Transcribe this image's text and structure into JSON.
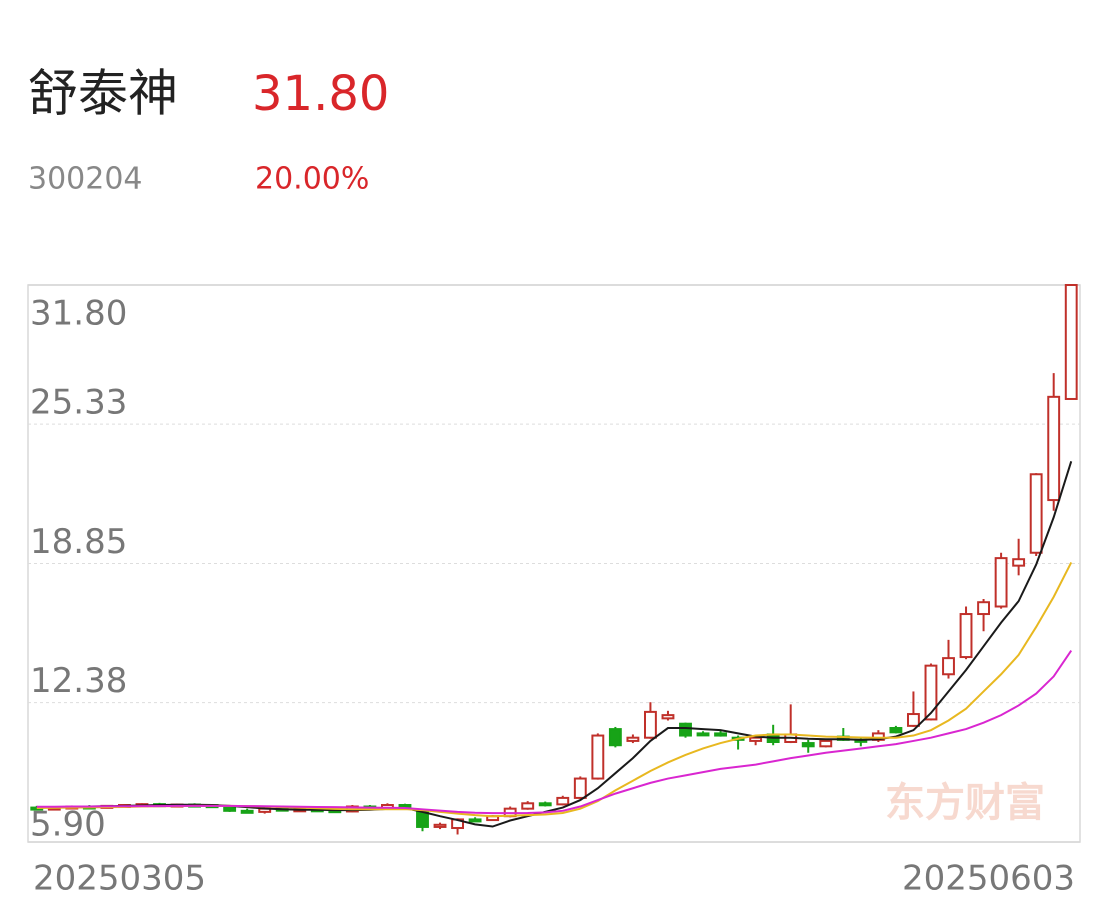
{
  "header": {
    "name": "舒泰神",
    "price": "31.80",
    "code": "300204",
    "change": "20.00%"
  },
  "chart_data": {
    "type": "candlestick",
    "watermark": "东方财富",
    "categories": [
      "20250305",
      null,
      null,
      null,
      null,
      null,
      null,
      null,
      null,
      null,
      null,
      null,
      null,
      null,
      null,
      null,
      null,
      null,
      null,
      null,
      null,
      null,
      null,
      null,
      null,
      null,
      null,
      null,
      null,
      null,
      null,
      null,
      null,
      null,
      null,
      null,
      null,
      null,
      null,
      null,
      null,
      null,
      null,
      null,
      null,
      null,
      null,
      null,
      null,
      null,
      null,
      null,
      null,
      null,
      null,
      null,
      null,
      null,
      null,
      "20250603"
    ],
    "open": [
      7.5,
      7.45,
      7.5,
      7.55,
      7.52,
      7.58,
      7.62,
      7.66,
      7.6,
      7.64,
      7.62,
      7.52,
      7.35,
      7.3,
      7.45,
      7.4,
      7.42,
      7.38,
      7.32,
      7.55,
      7.45,
      7.62,
      7.35,
      6.6,
      6.55,
      6.95,
      6.92,
      7.1,
      7.45,
      7.7,
      7.65,
      7.95,
      8.85,
      11.15,
      10.6,
      10.75,
      11.65,
      11.4,
      10.95,
      10.95,
      10.75,
      10.6,
      10.9,
      10.55,
      10.5,
      10.35,
      10.8,
      10.65,
      10.65,
      11.2,
      11.3,
      11.6,
      13.7,
      14.5,
      16.5,
      16.85,
      18.75,
      19.35,
      21.8,
      26.5
    ],
    "high": [
      7.58,
      7.55,
      7.6,
      7.62,
      7.6,
      7.66,
      7.7,
      7.72,
      7.68,
      7.7,
      7.66,
      7.58,
      7.45,
      7.48,
      7.52,
      7.5,
      7.5,
      7.5,
      7.62,
      7.62,
      7.7,
      7.68,
      7.4,
      6.8,
      7.0,
      7.05,
      7.15,
      7.55,
      7.8,
      7.78,
      8.05,
      8.95,
      10.95,
      11.25,
      10.9,
      12.4,
      12.0,
      11.45,
      11.05,
      11.1,
      10.85,
      10.85,
      11.35,
      12.3,
      10.65,
      10.7,
      11.2,
      10.75,
      11.1,
      11.3,
      12.9,
      14.2,
      15.3,
      16.85,
      17.2,
      19.35,
      20.0,
      23.05,
      27.7,
      31.8
    ],
    "low": [
      7.42,
      7.4,
      7.45,
      7.48,
      7.46,
      7.52,
      7.55,
      7.58,
      7.54,
      7.56,
      7.5,
      7.3,
      7.25,
      7.22,
      7.38,
      7.35,
      7.36,
      7.3,
      7.28,
      7.4,
      7.4,
      7.5,
      6.4,
      6.5,
      6.25,
      6.85,
      6.88,
      7.05,
      7.4,
      7.55,
      7.6,
      7.9,
      8.8,
      10.3,
      10.5,
      10.7,
      11.55,
      10.75,
      10.85,
      10.8,
      10.2,
      10.4,
      10.4,
      10.5,
      10.05,
      10.3,
      10.6,
      10.35,
      10.55,
      10.95,
      11.25,
      11.55,
      13.5,
      14.4,
      15.7,
      16.75,
      18.3,
      19.2,
      21.3,
      26.5
    ],
    "close": [
      7.45,
      7.5,
      7.55,
      7.52,
      7.58,
      7.62,
      7.66,
      7.6,
      7.64,
      7.62,
      7.52,
      7.35,
      7.3,
      7.45,
      7.4,
      7.42,
      7.38,
      7.32,
      7.55,
      7.45,
      7.62,
      7.55,
      6.6,
      6.7,
      6.95,
      6.92,
      7.1,
      7.45,
      7.7,
      7.65,
      7.95,
      8.85,
      10.85,
      10.4,
      10.75,
      11.95,
      11.8,
      10.85,
      10.9,
      10.85,
      10.65,
      10.75,
      10.55,
      10.9,
      10.35,
      10.6,
      10.65,
      10.6,
      10.95,
      11.0,
      11.85,
      14.1,
      14.45,
      16.5,
      17.05,
      19.1,
      19.05,
      23.0,
      26.6,
      31.8
    ],
    "up_color": "#c0302a",
    "down_color": "#17a317",
    "lines": [
      {
        "color": "#1a1a1a",
        "values": [
          7.52,
          7.52,
          7.53,
          7.55,
          7.56,
          7.58,
          7.6,
          7.62,
          7.63,
          7.63,
          7.62,
          7.58,
          7.52,
          7.46,
          7.42,
          7.4,
          7.4,
          7.38,
          7.38,
          7.4,
          7.44,
          7.48,
          7.3,
          7.1,
          6.92,
          6.72,
          6.62,
          6.9,
          7.1,
          7.3,
          7.5,
          7.85,
          8.4,
          9.1,
          9.8,
          10.6,
          11.2,
          11.2,
          11.15,
          11.1,
          10.95,
          10.8,
          10.75,
          10.75,
          10.7,
          10.68,
          10.68,
          10.65,
          10.68,
          10.8,
          11.1,
          11.9,
          12.9,
          13.9,
          15.0,
          16.1,
          17.1,
          18.8,
          21.0,
          23.6
        ]
      },
      {
        "color": "#e8b820",
        "values": [
          7.48,
          7.49,
          7.5,
          7.51,
          7.52,
          7.53,
          7.55,
          7.56,
          7.57,
          7.58,
          7.58,
          7.58,
          7.57,
          7.55,
          7.52,
          7.5,
          7.47,
          7.44,
          7.42,
          7.42,
          7.42,
          7.43,
          7.38,
          7.3,
          7.22,
          7.15,
          7.1,
          7.12,
          7.15,
          7.18,
          7.25,
          7.45,
          7.8,
          8.3,
          8.75,
          9.2,
          9.6,
          9.95,
          10.25,
          10.5,
          10.7,
          10.85,
          10.9,
          10.9,
          10.85,
          10.8,
          10.78,
          10.76,
          10.75,
          10.75,
          10.85,
          11.1,
          11.55,
          12.1,
          12.9,
          13.7,
          14.6,
          15.9,
          17.3,
          18.9
        ]
      },
      {
        "color": "#d926d0",
        "values": [
          7.54,
          7.54,
          7.55,
          7.55,
          7.56,
          7.56,
          7.57,
          7.57,
          7.58,
          7.58,
          7.58,
          7.58,
          7.57,
          7.56,
          7.55,
          7.54,
          7.53,
          7.52,
          7.51,
          7.5,
          7.49,
          7.48,
          7.42,
          7.36,
          7.3,
          7.26,
          7.24,
          7.24,
          7.25,
          7.28,
          7.35,
          7.55,
          7.85,
          8.15,
          8.4,
          8.65,
          8.85,
          9.0,
          9.15,
          9.3,
          9.4,
          9.5,
          9.65,
          9.8,
          9.92,
          10.05,
          10.15,
          10.25,
          10.35,
          10.45,
          10.6,
          10.75,
          10.95,
          11.15,
          11.45,
          11.8,
          12.25,
          12.8,
          13.6,
          14.8
        ]
      }
    ],
    "ylim": [
      5.9,
      31.8
    ],
    "yticks": [
      {
        "value": 5.9,
        "label": "5.90"
      },
      12.38,
      18.85,
      25.33,
      {
        "value": 31.8,
        "label": "31.80"
      }
    ],
    "grid": true
  }
}
